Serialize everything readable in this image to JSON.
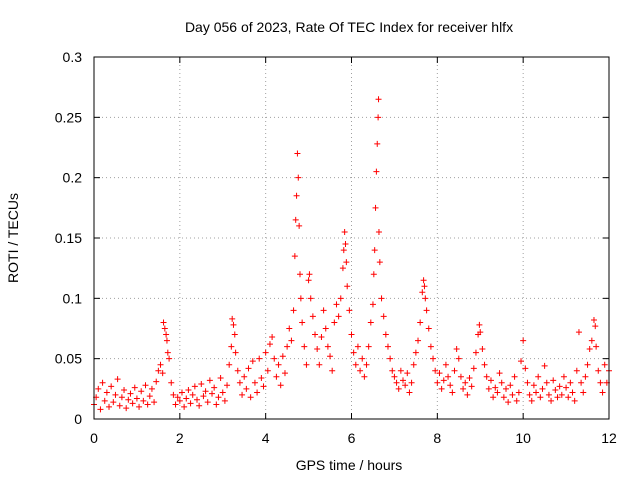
{
  "chart_data": {
    "type": "scatter",
    "title": "Day 056 of 2023, Rate Of TEC Index for receiver hlfx",
    "xlabel": "GPS time / hours",
    "ylabel": "ROTI / TECUs",
    "xlim": [
      0,
      12
    ],
    "ylim": [
      0,
      0.3
    ],
    "xticks": [
      0,
      2,
      4,
      6,
      8,
      10,
      12
    ],
    "xtick_labels": [
      "0",
      "2",
      "4",
      "6",
      "8",
      "10",
      "12"
    ],
    "yticks": [
      0,
      0.05,
      0.1,
      0.15,
      0.2,
      0.25,
      0.3
    ],
    "ytick_labels": [
      "0",
      "0.05",
      "0.1",
      "0.15",
      "0.2",
      "0.25",
      "0.3"
    ],
    "grid": true,
    "marker": "plus",
    "series": [
      {
        "name": "ROTI",
        "color": "#ff0000",
        "points": [
          [
            0.0,
            0.012
          ],
          [
            0.05,
            0.018
          ],
          [
            0.1,
            0.025
          ],
          [
            0.15,
            0.008
          ],
          [
            0.2,
            0.03
          ],
          [
            0.25,
            0.015
          ],
          [
            0.3,
            0.022
          ],
          [
            0.35,
            0.01
          ],
          [
            0.4,
            0.027
          ],
          [
            0.45,
            0.014
          ],
          [
            0.5,
            0.02
          ],
          [
            0.55,
            0.033
          ],
          [
            0.6,
            0.011
          ],
          [
            0.65,
            0.018
          ],
          [
            0.7,
            0.024
          ],
          [
            0.75,
            0.009
          ],
          [
            0.8,
            0.016
          ],
          [
            0.85,
            0.021
          ],
          [
            0.9,
            0.013
          ],
          [
            0.95,
            0.026
          ],
          [
            1.0,
            0.017
          ],
          [
            1.05,
            0.01
          ],
          [
            1.1,
            0.023
          ],
          [
            1.15,
            0.015
          ],
          [
            1.2,
            0.028
          ],
          [
            1.25,
            0.012
          ],
          [
            1.3,
            0.019
          ],
          [
            1.35,
            0.025
          ],
          [
            1.4,
            0.014
          ],
          [
            1.45,
            0.031
          ],
          [
            1.5,
            0.04
          ],
          [
            1.55,
            0.045
          ],
          [
            1.6,
            0.038
          ],
          [
            1.62,
            0.08
          ],
          [
            1.65,
            0.075
          ],
          [
            1.68,
            0.07
          ],
          [
            1.7,
            0.065
          ],
          [
            1.72,
            0.055
          ],
          [
            1.75,
            0.05
          ],
          [
            1.8,
            0.03
          ],
          [
            1.85,
            0.02
          ],
          [
            1.9,
            0.012
          ],
          [
            1.95,
            0.018
          ],
          [
            2.0,
            0.015
          ],
          [
            2.05,
            0.022
          ],
          [
            2.1,
            0.01
          ],
          [
            2.15,
            0.017
          ],
          [
            2.2,
            0.024
          ],
          [
            2.25,
            0.013
          ],
          [
            2.3,
            0.02
          ],
          [
            2.35,
            0.027
          ],
          [
            2.4,
            0.016
          ],
          [
            2.45,
            0.011
          ],
          [
            2.5,
            0.029
          ],
          [
            2.55,
            0.019
          ],
          [
            2.6,
            0.023
          ],
          [
            2.65,
            0.014
          ],
          [
            2.7,
            0.032
          ],
          [
            2.75,
            0.021
          ],
          [
            2.8,
            0.026
          ],
          [
            2.85,
            0.012
          ],
          [
            2.9,
            0.018
          ],
          [
            2.95,
            0.034
          ],
          [
            3.0,
            0.022
          ],
          [
            3.05,
            0.015
          ],
          [
            3.1,
            0.028
          ],
          [
            3.15,
            0.045
          ],
          [
            3.2,
            0.06
          ],
          [
            3.22,
            0.083
          ],
          [
            3.25,
            0.078
          ],
          [
            3.28,
            0.07
          ],
          [
            3.3,
            0.055
          ],
          [
            3.35,
            0.04
          ],
          [
            3.4,
            0.03
          ],
          [
            3.45,
            0.02
          ],
          [
            3.5,
            0.035
          ],
          [
            3.55,
            0.025
          ],
          [
            3.6,
            0.042
          ],
          [
            3.65,
            0.018
          ],
          [
            3.7,
            0.048
          ],
          [
            3.75,
            0.03
          ],
          [
            3.8,
            0.022
          ],
          [
            3.85,
            0.05
          ],
          [
            3.9,
            0.034
          ],
          [
            3.95,
            0.027
          ],
          [
            4.0,
            0.055
          ],
          [
            4.05,
            0.04
          ],
          [
            4.1,
            0.062
          ],
          [
            4.15,
            0.068
          ],
          [
            4.2,
            0.05
          ],
          [
            4.25,
            0.035
          ],
          [
            4.3,
            0.045
          ],
          [
            4.35,
            0.028
          ],
          [
            4.4,
            0.052
          ],
          [
            4.45,
            0.038
          ],
          [
            4.5,
            0.06
          ],
          [
            4.55,
            0.075
          ],
          [
            4.6,
            0.065
          ],
          [
            4.65,
            0.09
          ],
          [
            4.68,
            0.135
          ],
          [
            4.7,
            0.165
          ],
          [
            4.72,
            0.185
          ],
          [
            4.74,
            0.22
          ],
          [
            4.76,
            0.2
          ],
          [
            4.78,
            0.16
          ],
          [
            4.8,
            0.12
          ],
          [
            4.82,
            0.1
          ],
          [
            4.85,
            0.08
          ],
          [
            4.9,
            0.06
          ],
          [
            4.95,
            0.045
          ],
          [
            5.0,
            0.115
          ],
          [
            5.02,
            0.12
          ],
          [
            5.05,
            0.1
          ],
          [
            5.1,
            0.085
          ],
          [
            5.15,
            0.07
          ],
          [
            5.2,
            0.058
          ],
          [
            5.25,
            0.045
          ],
          [
            5.3,
            0.068
          ],
          [
            5.35,
            0.09
          ],
          [
            5.4,
            0.075
          ],
          [
            5.45,
            0.06
          ],
          [
            5.5,
            0.052
          ],
          [
            5.55,
            0.04
          ],
          [
            5.6,
            0.08
          ],
          [
            5.65,
            0.095
          ],
          [
            5.7,
            0.085
          ],
          [
            5.75,
            0.1
          ],
          [
            5.8,
            0.125
          ],
          [
            5.82,
            0.14
          ],
          [
            5.84,
            0.155
          ],
          [
            5.86,
            0.145
          ],
          [
            5.88,
            0.13
          ],
          [
            5.9,
            0.11
          ],
          [
            5.95,
            0.09
          ],
          [
            6.0,
            0.07
          ],
          [
            6.05,
            0.055
          ],
          [
            6.1,
            0.045
          ],
          [
            6.15,
            0.06
          ],
          [
            6.2,
            0.04
          ],
          [
            6.25,
            0.05
          ],
          [
            6.3,
            0.035
          ],
          [
            6.35,
            0.045
          ],
          [
            6.4,
            0.06
          ],
          [
            6.45,
            0.08
          ],
          [
            6.5,
            0.095
          ],
          [
            6.52,
            0.12
          ],
          [
            6.54,
            0.14
          ],
          [
            6.56,
            0.175
          ],
          [
            6.58,
            0.205
          ],
          [
            6.6,
            0.228
          ],
          [
            6.62,
            0.25
          ],
          [
            6.63,
            0.265
          ],
          [
            6.64,
            0.155
          ],
          [
            6.66,
            0.13
          ],
          [
            6.7,
            0.1
          ],
          [
            6.75,
            0.085
          ],
          [
            6.8,
            0.07
          ],
          [
            6.85,
            0.06
          ],
          [
            6.9,
            0.05
          ],
          [
            6.95,
            0.04
          ],
          [
            7.0,
            0.035
          ],
          [
            7.05,
            0.03
          ],
          [
            7.1,
            0.025
          ],
          [
            7.15,
            0.04
          ],
          [
            7.2,
            0.032
          ],
          [
            7.25,
            0.028
          ],
          [
            7.3,
            0.038
          ],
          [
            7.35,
            0.022
          ],
          [
            7.4,
            0.03
          ],
          [
            7.45,
            0.045
          ],
          [
            7.5,
            0.055
          ],
          [
            7.55,
            0.065
          ],
          [
            7.6,
            0.08
          ],
          [
            7.65,
            0.105
          ],
          [
            7.68,
            0.115
          ],
          [
            7.7,
            0.11
          ],
          [
            7.72,
            0.1
          ],
          [
            7.75,
            0.09
          ],
          [
            7.8,
            0.075
          ],
          [
            7.85,
            0.06
          ],
          [
            7.9,
            0.05
          ],
          [
            7.95,
            0.04
          ],
          [
            8.0,
            0.03
          ],
          [
            8.05,
            0.038
          ],
          [
            8.1,
            0.025
          ],
          [
            8.15,
            0.032
          ],
          [
            8.2,
            0.045
          ],
          [
            8.25,
            0.035
          ],
          [
            8.3,
            0.028
          ],
          [
            8.35,
            0.022
          ],
          [
            8.4,
            0.04
          ],
          [
            8.45,
            0.058
          ],
          [
            8.5,
            0.05
          ],
          [
            8.55,
            0.035
          ],
          [
            8.6,
            0.025
          ],
          [
            8.65,
            0.03
          ],
          [
            8.7,
            0.02
          ],
          [
            8.75,
            0.034
          ],
          [
            8.8,
            0.027
          ],
          [
            8.85,
            0.042
          ],
          [
            8.9,
            0.055
          ],
          [
            8.95,
            0.07
          ],
          [
            8.98,
            0.078
          ],
          [
            9.0,
            0.072
          ],
          [
            9.05,
            0.058
          ],
          [
            9.1,
            0.045
          ],
          [
            9.15,
            0.035
          ],
          [
            9.2,
            0.025
          ],
          [
            9.25,
            0.032
          ],
          [
            9.3,
            0.018
          ],
          [
            9.35,
            0.026
          ],
          [
            9.4,
            0.022
          ],
          [
            9.45,
            0.038
          ],
          [
            9.5,
            0.03
          ],
          [
            9.55,
            0.018
          ],
          [
            9.6,
            0.025
          ],
          [
            9.65,
            0.014
          ],
          [
            9.7,
            0.028
          ],
          [
            9.75,
            0.02
          ],
          [
            9.8,
            0.035
          ],
          [
            9.85,
            0.015
          ],
          [
            9.9,
            0.022
          ],
          [
            9.95,
            0.048
          ],
          [
            10.0,
            0.065
          ],
          [
            10.05,
            0.042
          ],
          [
            10.1,
            0.03
          ],
          [
            10.15,
            0.02
          ],
          [
            10.2,
            0.015
          ],
          [
            10.25,
            0.028
          ],
          [
            10.3,
            0.022
          ],
          [
            10.35,
            0.035
          ],
          [
            10.4,
            0.018
          ],
          [
            10.45,
            0.025
          ],
          [
            10.5,
            0.044
          ],
          [
            10.55,
            0.03
          ],
          [
            10.6,
            0.02
          ],
          [
            10.65,
            0.015
          ],
          [
            10.7,
            0.032
          ],
          [
            10.75,
            0.024
          ],
          [
            10.8,
            0.018
          ],
          [
            10.85,
            0.027
          ],
          [
            10.9,
            0.02
          ],
          [
            10.95,
            0.035
          ],
          [
            11.0,
            0.026
          ],
          [
            11.05,
            0.018
          ],
          [
            11.1,
            0.03
          ],
          [
            11.15,
            0.022
          ],
          [
            11.2,
            0.015
          ],
          [
            11.25,
            0.04
          ],
          [
            11.3,
            0.072
          ],
          [
            11.35,
            0.03
          ],
          [
            11.4,
            0.022
          ],
          [
            11.45,
            0.035
          ],
          [
            11.5,
            0.045
          ],
          [
            11.55,
            0.058
          ],
          [
            11.6,
            0.065
          ],
          [
            11.65,
            0.082
          ],
          [
            11.68,
            0.077
          ],
          [
            11.7,
            0.06
          ],
          [
            11.75,
            0.04
          ],
          [
            11.8,
            0.03
          ],
          [
            11.85,
            0.022
          ],
          [
            11.9,
            0.045
          ],
          [
            11.95,
            0.03
          ],
          [
            12.0,
            0.04
          ]
        ]
      }
    ]
  }
}
